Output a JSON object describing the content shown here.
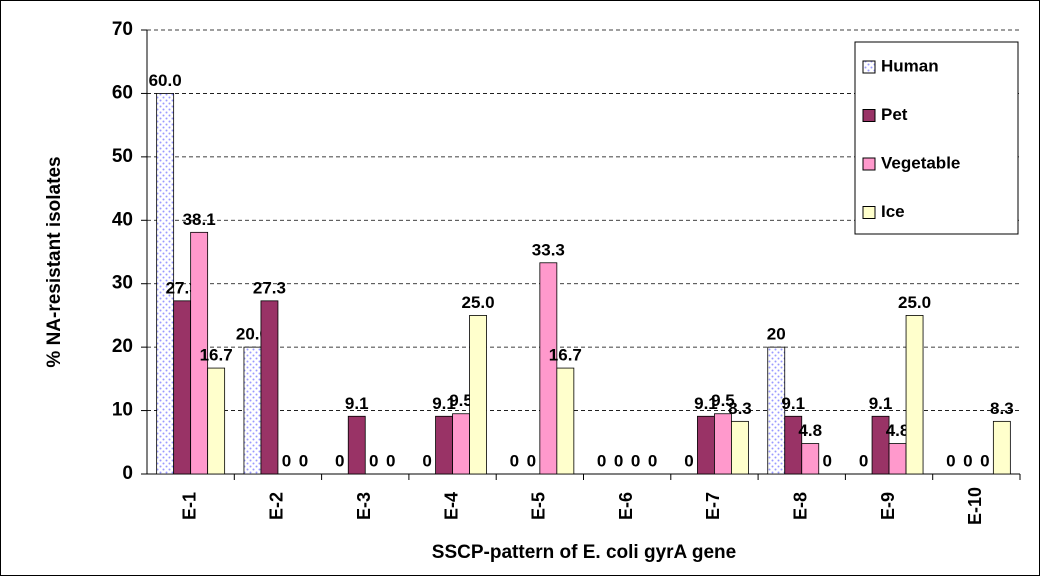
{
  "chart_data": {
    "type": "bar",
    "x_label": "SSCP-pattern of E. coli gyrA gene",
    "y_label": "% NA-resistant isolates",
    "categories": [
      "E-1",
      "E-2",
      "E-3",
      "E-4",
      "E-5",
      "E-6",
      "E-7",
      "E-8",
      "E-9",
      "E-10"
    ],
    "series": [
      {
        "name": "Human",
        "color": "#9999ff",
        "pattern": true,
        "values": [
          60.0,
          20.0,
          0,
          0,
          0,
          0,
          0,
          20,
          0,
          0
        ],
        "value_labels": [
          "60.0",
          "20.0",
          "0",
          "0",
          "0",
          "0",
          "0",
          "20",
          "0",
          "0"
        ]
      },
      {
        "name": "Pet",
        "color": "#993366",
        "values": [
          27.3,
          27.3,
          9.1,
          9.1,
          0,
          0,
          9.1,
          9.1,
          9.1,
          0
        ],
        "value_labels": [
          "27.3",
          "27.3",
          "9.1",
          "9.1",
          "0",
          "0",
          "9.1",
          "9.1",
          "9.1",
          "0"
        ]
      },
      {
        "name": "Vegetable",
        "color": "#ff99cc",
        "values": [
          38.1,
          0,
          0,
          9.5,
          33.3,
          0,
          9.5,
          4.8,
          4.8,
          0
        ],
        "value_labels": [
          "38.1",
          "0",
          "0",
          "9.5",
          "33.3",
          "0",
          "9.5",
          "4.8",
          "4.8",
          "0"
        ]
      },
      {
        "name": "Ice",
        "color": "#ffffcc",
        "values": [
          16.7,
          0,
          0,
          25.0,
          16.7,
          0,
          8.3,
          0,
          25.0,
          8.3
        ],
        "value_labels": [
          "16.7",
          "0",
          "0",
          "25.0",
          "16.7",
          "0",
          "8.3",
          "0",
          "25.0",
          "8.3"
        ]
      }
    ],
    "ylim": [
      0,
      70
    ],
    "yticks": [
      0,
      10,
      20,
      30,
      40,
      50,
      60,
      70
    ],
    "grid": true,
    "legend": "upper right"
  }
}
